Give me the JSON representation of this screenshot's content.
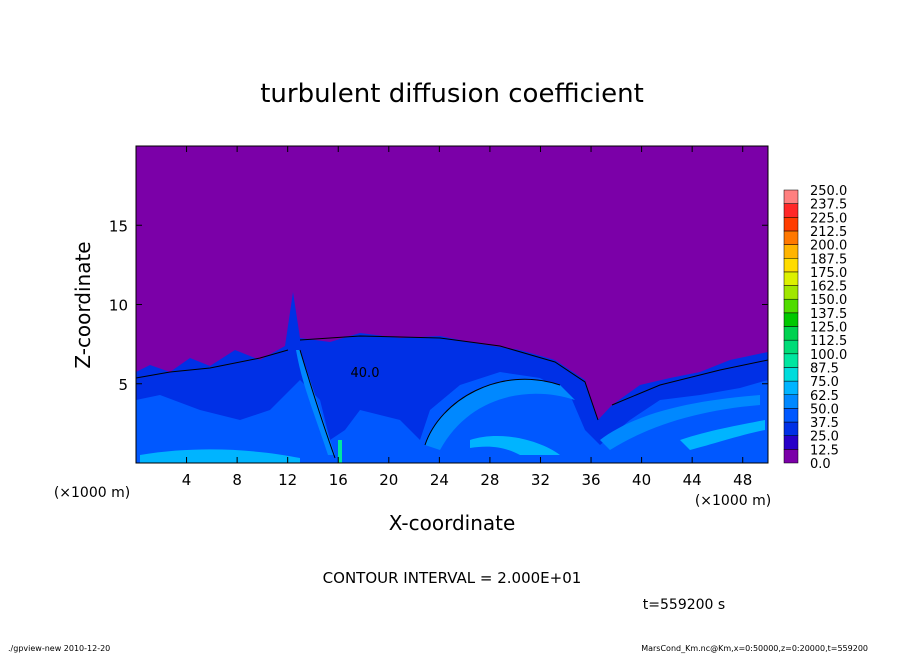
{
  "chart_data": {
    "type": "contour",
    "title": "turbulent diffusion coefficient",
    "xlabel": "X-coordinate",
    "ylabel": "Z-coordinate",
    "x_unit": "(×1000 m)",
    "xlim": [
      0,
      50
    ],
    "xticks": [
      4,
      8,
      12,
      16,
      20,
      24,
      28,
      32,
      36,
      40,
      44,
      48
    ],
    "ylim": [
      0,
      20
    ],
    "yticks": [
      5,
      10,
      15
    ],
    "levels": [
      {
        "value": 0,
        "label": "0.0"
      },
      {
        "value": 12.5,
        "label": "12.5"
      },
      {
        "value": 25,
        "label": "25.0"
      },
      {
        "value": 37.5,
        "label": "37.5"
      },
      {
        "value": 50,
        "label": "50.0"
      },
      {
        "value": 62.5,
        "label": "62.5"
      },
      {
        "value": 75,
        "label": "75.0"
      },
      {
        "value": 87.5,
        "label": "87.5"
      },
      {
        "value": 100,
        "label": "100.0"
      },
      {
        "value": 112.5,
        "label": "112.5"
      },
      {
        "value": 125,
        "label": "125.0"
      },
      {
        "value": 137.5,
        "label": "137.5"
      },
      {
        "value": 150,
        "label": "150.0"
      },
      {
        "value": 162.5,
        "label": "162.5"
      },
      {
        "value": 175,
        "label": "175.0"
      },
      {
        "value": 187.5,
        "label": "187.5"
      },
      {
        "value": 200,
        "label": "200.0"
      },
      {
        "value": 212.5,
        "label": "212.5"
      },
      {
        "value": 225,
        "label": "225.0"
      },
      {
        "value": 237.5,
        "label": "237.5"
      },
      {
        "value": 250,
        "label": "250.0"
      }
    ],
    "colors": [
      "#7b00a8",
      "#2800c8",
      "#0030e6",
      "#0058ff",
      "#0088ff",
      "#00b4ff",
      "#00dcdc",
      "#00e6a0",
      "#00dc78",
      "#00d250",
      "#00c800",
      "#50dc00",
      "#a0e600",
      "#dcf000",
      "#ffdc00",
      "#ffb400",
      "#ff7800",
      "#ff3c00",
      "#ff2828",
      "#ff8080"
    ],
    "contour_label": "40.0",
    "contour_interval": "CONTOUR INTERVAL = 2.000E+01",
    "time": "t=559200 s",
    "footer_left": "./gpview-new  2010-12-20",
    "footer_right": "MarsCond_Km.nc@Km,x=0:50000,z=0:20000,t=559200"
  }
}
